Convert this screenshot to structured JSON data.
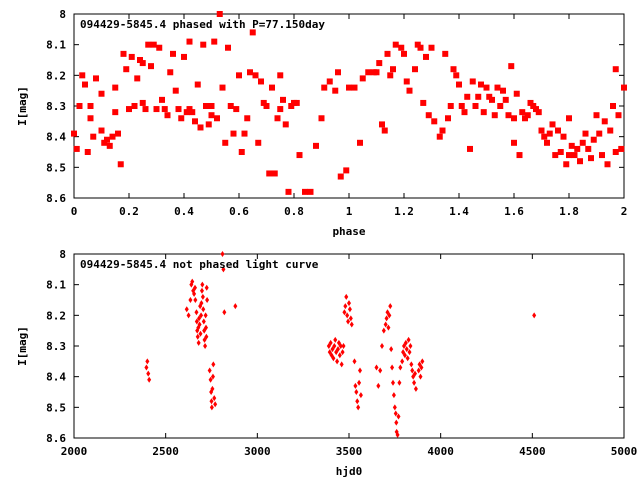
{
  "chart_data": [
    {
      "type": "scatter",
      "title": "094429-5845.4 phased with P=77.150day",
      "xlabel": "phase",
      "ylabel": "I[mag]",
      "xlim": [
        0,
        2
      ],
      "ylim": [
        8.6,
        8.0
      ],
      "y_axis_inverted": true,
      "x_ticks": [
        "0",
        "0.2",
        "0.4",
        "0.6",
        "0.8",
        "1",
        "1.2",
        "1.4",
        "1.6",
        "1.8",
        "2"
      ],
      "y_ticks": [
        "8",
        "8.1",
        "8.2",
        "8.3",
        "8.4",
        "8.5",
        "8.6"
      ],
      "grid": false,
      "marker": "filled-square",
      "color": "#ff0000",
      "points": [
        [
          0.0,
          8.39
        ],
        [
          0.01,
          8.44
        ],
        [
          0.02,
          8.3
        ],
        [
          0.03,
          8.2
        ],
        [
          0.04,
          8.23
        ],
        [
          0.05,
          8.45
        ],
        [
          0.06,
          8.3
        ],
        [
          0.06,
          8.34
        ],
        [
          0.07,
          8.4
        ],
        [
          0.08,
          8.21
        ],
        [
          0.1,
          8.26
        ],
        [
          0.1,
          8.38
        ],
        [
          0.11,
          8.42
        ],
        [
          0.12,
          8.41
        ],
        [
          0.13,
          8.43
        ],
        [
          0.14,
          8.4
        ],
        [
          0.15,
          8.24
        ],
        [
          0.15,
          8.32
        ],
        [
          0.16,
          8.39
        ],
        [
          0.17,
          8.49
        ],
        [
          0.18,
          8.13
        ],
        [
          0.19,
          8.18
        ],
        [
          0.2,
          8.31
        ],
        [
          0.21,
          8.14
        ],
        [
          0.22,
          8.3
        ],
        [
          0.23,
          8.21
        ],
        [
          0.24,
          8.15
        ],
        [
          0.25,
          8.29
        ],
        [
          0.26,
          8.31
        ],
        [
          0.27,
          8.1
        ],
        [
          0.28,
          8.17
        ],
        [
          0.29,
          8.1
        ],
        [
          0.3,
          8.31
        ],
        [
          0.31,
          8.11
        ],
        [
          0.32,
          8.28
        ],
        [
          0.33,
          8.31
        ],
        [
          0.34,
          8.33
        ],
        [
          0.35,
          8.19
        ],
        [
          0.36,
          8.13
        ],
        [
          0.37,
          8.25
        ],
        [
          0.38,
          8.31
        ],
        [
          0.39,
          8.34
        ],
        [
          0.4,
          8.14
        ],
        [
          0.41,
          8.32
        ],
        [
          0.42,
          8.31
        ],
        [
          0.42,
          8.09
        ],
        [
          0.43,
          8.32
        ],
        [
          0.44,
          8.35
        ],
        [
          0.45,
          8.23
        ],
        [
          0.46,
          8.37
        ],
        [
          0.47,
          8.1
        ],
        [
          0.48,
          8.3
        ],
        [
          0.49,
          8.36
        ],
        [
          0.5,
          8.33
        ],
        [
          0.5,
          8.3
        ],
        [
          0.51,
          8.09
        ],
        [
          0.52,
          8.34
        ],
        [
          0.53,
          8.0
        ],
        [
          0.54,
          8.24
        ],
        [
          0.55,
          8.42
        ],
        [
          0.56,
          8.11
        ],
        [
          0.57,
          8.3
        ],
        [
          0.58,
          8.39
        ],
        [
          0.59,
          8.31
        ],
        [
          0.6,
          8.2
        ],
        [
          0.61,
          8.45
        ],
        [
          0.62,
          8.39
        ],
        [
          0.63,
          8.34
        ],
        [
          0.64,
          8.19
        ],
        [
          0.65,
          8.06
        ],
        [
          0.66,
          8.2
        ],
        [
          0.67,
          8.42
        ],
        [
          0.68,
          8.22
        ],
        [
          0.69,
          8.29
        ],
        [
          0.7,
          8.3
        ],
        [
          0.71,
          8.52
        ],
        [
          0.72,
          8.24
        ],
        [
          0.73,
          8.52
        ],
        [
          0.74,
          8.34
        ],
        [
          0.75,
          8.31
        ],
        [
          0.76,
          8.28
        ],
        [
          0.77,
          8.36
        ],
        [
          0.78,
          8.58
        ],
        [
          0.79,
          8.3
        ],
        [
          0.8,
          8.29
        ],
        [
          0.81,
          8.29
        ],
        [
          0.82,
          8.46
        ],
        [
          0.84,
          8.58
        ],
        [
          0.86,
          8.58
        ],
        [
          0.88,
          8.43
        ],
        [
          0.9,
          8.34
        ],
        [
          0.91,
          8.24
        ],
        [
          0.93,
          8.22
        ],
        [
          0.95,
          8.25
        ],
        [
          0.96,
          8.19
        ],
        [
          0.97,
          8.53
        ],
        [
          0.99,
          8.51
        ],
        [
          1.0,
          8.24
        ],
        [
          1.02,
          8.24
        ],
        [
          1.04,
          8.42
        ],
        [
          1.05,
          8.21
        ],
        [
          1.07,
          8.19
        ],
        [
          1.09,
          8.19
        ],
        [
          1.11,
          8.16
        ],
        [
          1.12,
          8.36
        ],
        [
          1.13,
          8.38
        ],
        [
          1.14,
          8.13
        ],
        [
          1.15,
          8.2
        ],
        [
          1.16,
          8.18
        ],
        [
          1.17,
          8.1
        ],
        [
          1.19,
          8.11
        ],
        [
          1.2,
          8.13
        ],
        [
          1.21,
          8.22
        ],
        [
          1.22,
          8.25
        ],
        [
          1.24,
          8.18
        ],
        [
          1.25,
          8.1
        ],
        [
          1.26,
          8.11
        ],
        [
          1.27,
          8.29
        ],
        [
          1.28,
          8.14
        ],
        [
          1.29,
          8.33
        ],
        [
          1.3,
          8.11
        ],
        [
          1.31,
          8.35
        ],
        [
          1.33,
          8.4
        ],
        [
          1.34,
          8.38
        ],
        [
          1.35,
          8.13
        ],
        [
          1.36,
          8.34
        ],
        [
          1.37,
          8.3
        ],
        [
          1.38,
          8.18
        ],
        [
          1.39,
          8.2
        ],
        [
          1.4,
          8.23
        ],
        [
          1.41,
          8.3
        ],
        [
          1.42,
          8.32
        ],
        [
          1.43,
          8.27
        ],
        [
          1.44,
          8.44
        ],
        [
          1.45,
          8.22
        ],
        [
          1.46,
          8.3
        ],
        [
          1.47,
          8.27
        ],
        [
          1.48,
          8.23
        ],
        [
          1.49,
          8.32
        ],
        [
          1.5,
          8.24
        ],
        [
          1.51,
          8.27
        ],
        [
          1.52,
          8.28
        ],
        [
          1.53,
          8.33
        ],
        [
          1.54,
          8.24
        ],
        [
          1.55,
          8.3
        ],
        [
          1.56,
          8.25
        ],
        [
          1.57,
          8.28
        ],
        [
          1.58,
          8.33
        ],
        [
          1.59,
          8.17
        ],
        [
          1.6,
          8.34
        ],
        [
          1.61,
          8.26
        ],
        [
          1.62,
          8.46
        ],
        [
          1.63,
          8.32
        ],
        [
          1.64,
          8.34
        ],
        [
          1.65,
          8.33
        ],
        [
          1.66,
          8.29
        ],
        [
          1.67,
          8.3
        ],
        [
          1.68,
          8.31
        ],
        [
          1.69,
          8.32
        ],
        [
          1.7,
          8.38
        ],
        [
          1.71,
          8.4
        ],
        [
          1.72,
          8.42
        ],
        [
          1.73,
          8.39
        ],
        [
          1.74,
          8.36
        ],
        [
          1.75,
          8.46
        ],
        [
          1.76,
          8.38
        ],
        [
          1.77,
          8.45
        ],
        [
          1.78,
          8.4
        ],
        [
          1.79,
          8.49
        ],
        [
          1.8,
          8.34
        ],
        [
          1.81,
          8.43
        ],
        [
          1.82,
          8.46
        ],
        [
          1.83,
          8.44
        ],
        [
          1.84,
          8.48
        ],
        [
          1.85,
          8.42
        ],
        [
          1.86,
          8.39
        ],
        [
          1.87,
          8.44
        ],
        [
          1.88,
          8.47
        ],
        [
          1.89,
          8.41
        ],
        [
          1.9,
          8.33
        ],
        [
          1.91,
          8.39
        ],
        [
          1.92,
          8.46
        ],
        [
          1.93,
          8.35
        ],
        [
          1.94,
          8.49
        ],
        [
          1.95,
          8.38
        ],
        [
          1.96,
          8.3
        ],
        [
          1.97,
          8.45
        ],
        [
          1.98,
          8.33
        ],
        [
          1.99,
          8.44
        ],
        [
          2.0,
          8.24
        ],
        [
          1.97,
          8.18
        ],
        [
          1.1,
          8.19
        ],
        [
          1.8,
          8.46
        ],
        [
          1.6,
          8.42
        ],
        [
          0.25,
          8.16
        ],
        [
          0.75,
          8.2
        ]
      ]
    },
    {
      "type": "scatter",
      "title": "094429-5845.4 not phased light curve",
      "xlabel": "hjd0",
      "ylabel": "I[mag]",
      "xlim": [
        2000,
        5000
      ],
      "ylim": [
        8.6,
        8.0
      ],
      "y_axis_inverted": true,
      "x_ticks": [
        "2000",
        "2500",
        "3000",
        "3500",
        "4000",
        "4500",
        "5000"
      ],
      "y_ticks": [
        "8",
        "8.1",
        "8.2",
        "8.3",
        "8.4",
        "8.5",
        "8.6"
      ],
      "grid": false,
      "marker": "filled-diamond",
      "color": "#ff0000",
      "points": [
        [
          2395,
          8.37
        ],
        [
          2400,
          8.35
        ],
        [
          2405,
          8.39
        ],
        [
          2410,
          8.41
        ],
        [
          2615,
          8.18
        ],
        [
          2625,
          8.2
        ],
        [
          2635,
          8.15
        ],
        [
          2640,
          8.1
        ],
        [
          2645,
          8.09
        ],
        [
          2650,
          8.12
        ],
        [
          2655,
          8.13
        ],
        [
          2660,
          8.11
        ],
        [
          2662,
          8.15
        ],
        [
          2668,
          8.19
        ],
        [
          2670,
          8.22
        ],
        [
          2672,
          8.25
        ],
        [
          2675,
          8.27
        ],
        [
          2678,
          8.24
        ],
        [
          2680,
          8.29
        ],
        [
          2682,
          8.21
        ],
        [
          2685,
          8.23
        ],
        [
          2688,
          8.17
        ],
        [
          2690,
          8.26
        ],
        [
          2693,
          8.2
        ],
        [
          2695,
          8.16
        ],
        [
          2698,
          8.12
        ],
        [
          2700,
          8.1
        ],
        [
          2703,
          8.14
        ],
        [
          2705,
          8.18
        ],
        [
          2708,
          8.22
        ],
        [
          2710,
          8.25
        ],
        [
          2712,
          8.28
        ],
        [
          2715,
          8.3
        ],
        [
          2718,
          8.2
        ],
        [
          2720,
          8.24
        ],
        [
          2722,
          8.27
        ],
        [
          2724,
          8.11
        ],
        [
          2726,
          8.15
        ],
        [
          2740,
          8.38
        ],
        [
          2745,
          8.41
        ],
        [
          2748,
          8.45
        ],
        [
          2750,
          8.48
        ],
        [
          2752,
          8.5
        ],
        [
          2755,
          8.44
        ],
        [
          2758,
          8.4
        ],
        [
          2760,
          8.36
        ],
        [
          2765,
          8.47
        ],
        [
          2770,
          8.49
        ],
        [
          2810,
          8.0
        ],
        [
          2815,
          8.05
        ],
        [
          2820,
          8.19
        ],
        [
          2880,
          8.17
        ],
        [
          3390,
          8.3
        ],
        [
          3395,
          8.32
        ],
        [
          3400,
          8.29
        ],
        [
          3405,
          8.33
        ],
        [
          3410,
          8.31
        ],
        [
          3415,
          8.34
        ],
        [
          3420,
          8.3
        ],
        [
          3425,
          8.28
        ],
        [
          3430,
          8.32
        ],
        [
          3435,
          8.35
        ],
        [
          3440,
          8.31
        ],
        [
          3445,
          8.29
        ],
        [
          3450,
          8.33
        ],
        [
          3455,
          8.3
        ],
        [
          3460,
          8.36
        ],
        [
          3465,
          8.32
        ],
        [
          3470,
          8.3
        ],
        [
          3475,
          8.19
        ],
        [
          3480,
          8.17
        ],
        [
          3485,
          8.14
        ],
        [
          3490,
          8.2
        ],
        [
          3495,
          8.22
        ],
        [
          3500,
          8.16
        ],
        [
          3505,
          8.18
        ],
        [
          3510,
          8.21
        ],
        [
          3515,
          8.23
        ],
        [
          3530,
          8.35
        ],
        [
          3535,
          8.43
        ],
        [
          3540,
          8.45
        ],
        [
          3545,
          8.48
        ],
        [
          3550,
          8.5
        ],
        [
          3555,
          8.42
        ],
        [
          3560,
          8.38
        ],
        [
          3565,
          8.46
        ],
        [
          3650,
          8.37
        ],
        [
          3660,
          8.43
        ],
        [
          3670,
          8.38
        ],
        [
          3680,
          8.3
        ],
        [
          3690,
          8.25
        ],
        [
          3700,
          8.23
        ],
        [
          3705,
          8.21
        ],
        [
          3710,
          8.19
        ],
        [
          3715,
          8.24
        ],
        [
          3720,
          8.2
        ],
        [
          3725,
          8.17
        ],
        [
          3730,
          8.31
        ],
        [
          3735,
          8.37
        ],
        [
          3740,
          8.42
        ],
        [
          3745,
          8.46
        ],
        [
          3750,
          8.5
        ],
        [
          3755,
          8.52
        ],
        [
          3758,
          8.55
        ],
        [
          3760,
          8.58
        ],
        [
          3765,
          8.59
        ],
        [
          3770,
          8.53
        ],
        [
          3775,
          8.42
        ],
        [
          3780,
          8.37
        ],
        [
          3790,
          8.35
        ],
        [
          3795,
          8.32
        ],
        [
          3800,
          8.3
        ],
        [
          3805,
          8.33
        ],
        [
          3810,
          8.29
        ],
        [
          3815,
          8.31
        ],
        [
          3820,
          8.34
        ],
        [
          3825,
          8.28
        ],
        [
          3830,
          8.32
        ],
        [
          3835,
          8.3
        ],
        [
          3840,
          8.36
        ],
        [
          3845,
          8.38
        ],
        [
          3850,
          8.4
        ],
        [
          3855,
          8.42
        ],
        [
          3860,
          8.39
        ],
        [
          3865,
          8.44
        ],
        [
          3880,
          8.38
        ],
        [
          3885,
          8.36
        ],
        [
          3890,
          8.4
        ],
        [
          3895,
          8.37
        ],
        [
          3900,
          8.35
        ],
        [
          4510,
          8.2
        ]
      ]
    }
  ]
}
